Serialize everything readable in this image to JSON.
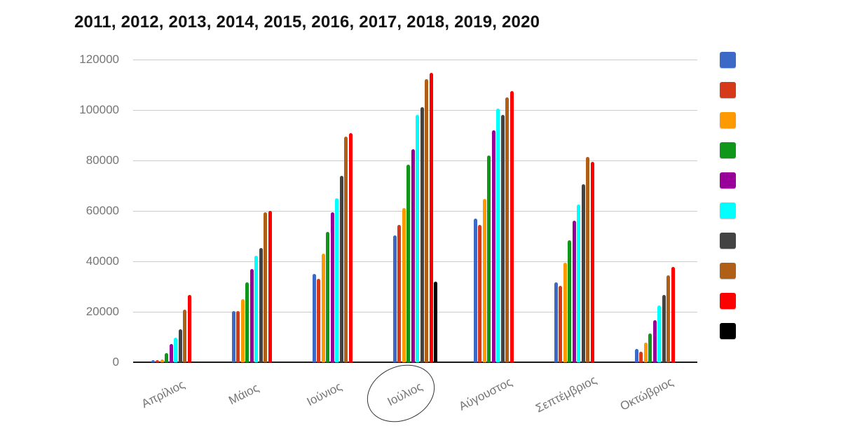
{
  "title": "2011, 2012, 2013, 2014, 2015, 2016, 2017, 2018, 2019, 2020",
  "colors": {
    "background": "#ffffff",
    "title_text": "#111111",
    "axis_label": "#757575",
    "gridline": "#cccccc",
    "baseline": "#1a1a1a",
    "annotation_stroke": "#333333"
  },
  "annotation": {
    "type": "ellipse",
    "target_category": "Ιούλιος"
  },
  "chart_data": {
    "type": "bar",
    "title": "2011, 2012, 2013, 2014, 2015, 2016, 2017, 2018, 2019, 2020",
    "xlabel": "",
    "ylabel": "",
    "ylim": [
      0,
      120000
    ],
    "yticks": [
      0,
      20000,
      40000,
      60000,
      80000,
      100000,
      120000
    ],
    "grid": true,
    "legend_position": "right",
    "legend_labels_visible": false,
    "categories": [
      "Απρίλιος",
      "Μάιος",
      "Ιούνιος",
      "Ιούλιος",
      "Αύγουστος",
      "Σεπτέμβριος",
      "Οκτώβριος"
    ],
    "series": [
      {
        "name": "2011",
        "color": "#3C69C8",
        "values": [
          800,
          20300,
          35000,
          50200,
          56900,
          31700,
          5400
        ]
      },
      {
        "name": "2012",
        "color": "#D6391A",
        "values": [
          800,
          20300,
          33000,
          54400,
          54400,
          30400,
          4300
        ]
      },
      {
        "name": "2013",
        "color": "#FF9900",
        "values": [
          1200,
          24900,
          43100,
          61200,
          64600,
          39400,
          7800
        ]
      },
      {
        "name": "2014",
        "color": "#109618",
        "values": [
          3500,
          31600,
          51700,
          78300,
          81900,
          48400,
          11400
        ]
      },
      {
        "name": "2015",
        "color": "#990099",
        "values": [
          7200,
          36900,
          59500,
          84400,
          92000,
          56100,
          16600
        ]
      },
      {
        "name": "2016",
        "color": "#00FFFF",
        "values": [
          9700,
          42200,
          64900,
          98000,
          100500,
          62600,
          22500
        ]
      },
      {
        "name": "2017",
        "color": "#434343",
        "values": [
          13200,
          45300,
          73900,
          101000,
          98000,
          70500,
          26800
        ]
      },
      {
        "name": "2018",
        "color": "#B05F16",
        "values": [
          20900,
          59500,
          89400,
          112300,
          104900,
          81400,
          34500
        ]
      },
      {
        "name": "2019",
        "color": "#FF0000",
        "values": [
          26800,
          60000,
          90800,
          114700,
          107500,
          79500,
          37900
        ]
      },
      {
        "name": "2020",
        "color": "#000000",
        "values": [
          0,
          0,
          0,
          32000,
          0,
          0,
          0
        ]
      }
    ]
  }
}
